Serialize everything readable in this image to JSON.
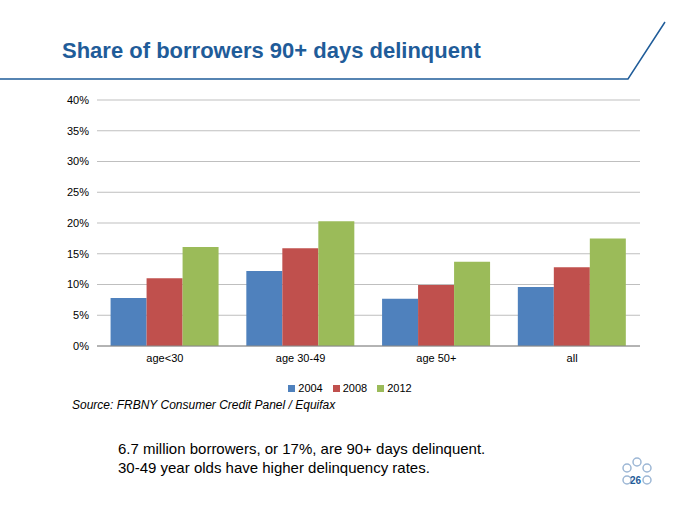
{
  "chart_data": {
    "type": "bar",
    "title": "Share of borrowers 90+ days delinquent",
    "categories": [
      "age<30",
      "age 30-49",
      "age 50+",
      "all"
    ],
    "series": [
      {
        "name": "2004",
        "color": "#4F81BD",
        "values": [
          7.8,
          12.2,
          7.7,
          9.6
        ]
      },
      {
        "name": "2008",
        "color": "#C0504D",
        "values": [
          11.0,
          15.9,
          9.9,
          12.8
        ]
      },
      {
        "name": "2012",
        "color": "#9BBB59",
        "values": [
          16.1,
          20.3,
          13.7,
          17.5
        ]
      }
    ],
    "ylim": [
      0,
      40
    ],
    "yticks": [
      {
        "value": 0,
        "label": "0%"
      },
      {
        "value": 5,
        "label": "5%"
      },
      {
        "value": 10,
        "label": "10%"
      },
      {
        "value": 15,
        "label": "15%"
      },
      {
        "value": 20,
        "label": "20%"
      },
      {
        "value": 25,
        "label": "25%"
      },
      {
        "value": 30,
        "label": "30%"
      },
      {
        "value": 35,
        "label": "35%"
      },
      {
        "value": 40,
        "label": "40%"
      }
    ],
    "grid": true,
    "legend": "bottom",
    "annotations": [
      "Source: FRBNY Consumer Credit Panel / Equifax",
      "6.7 million borrowers, or 17%, are 90+ days delinquent.",
      "30-49 year olds have higher delinquency rates.",
      "26"
    ]
  }
}
